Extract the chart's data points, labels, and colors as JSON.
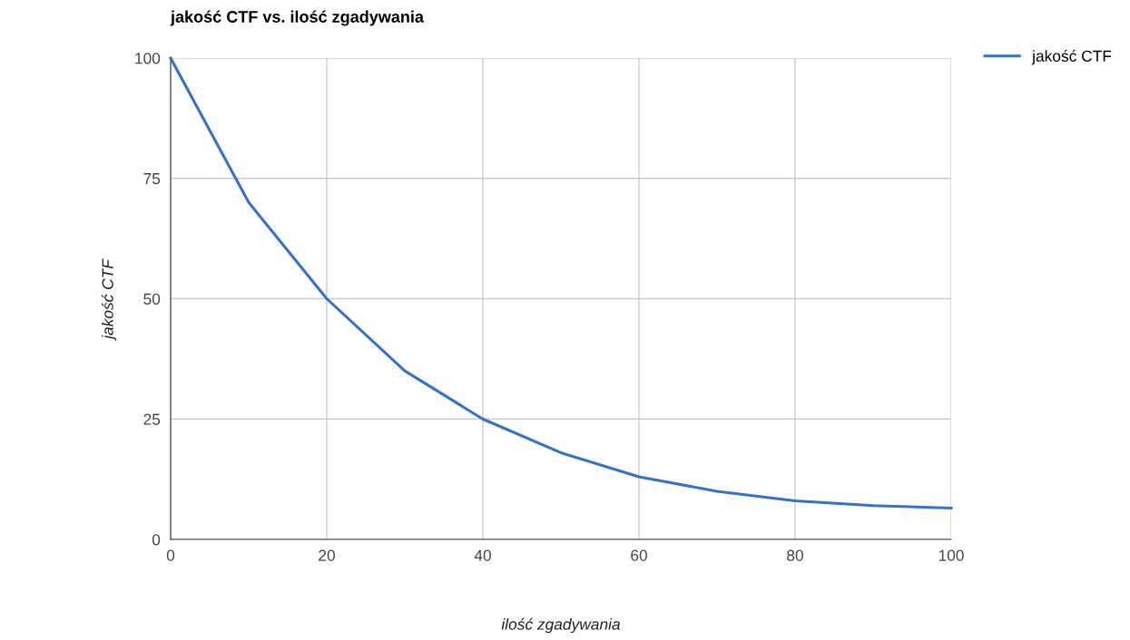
{
  "chart_data": {
    "type": "line",
    "title": "jakość CTF vs. ilość zgadywania",
    "xlabel": "ilość zgadywania",
    "ylabel": "jakość CTF",
    "x": [
      0,
      10,
      20,
      30,
      40,
      50,
      60,
      70,
      80,
      90,
      100
    ],
    "series": [
      {
        "name": "jakość CTF",
        "color": "#3572c6",
        "values": [
          100,
          70,
          50,
          35,
          25,
          18,
          13,
          10,
          8,
          7,
          6.5
        ]
      }
    ],
    "xlim": [
      0,
      100
    ],
    "xticks": [
      0,
      20,
      40,
      60,
      80,
      100
    ],
    "ylim": [
      0,
      100
    ],
    "yticks": [
      0,
      25,
      50,
      75,
      100
    ],
    "grid": true,
    "legend": "top right",
    "marker": "none",
    "line_style": "solid"
  }
}
